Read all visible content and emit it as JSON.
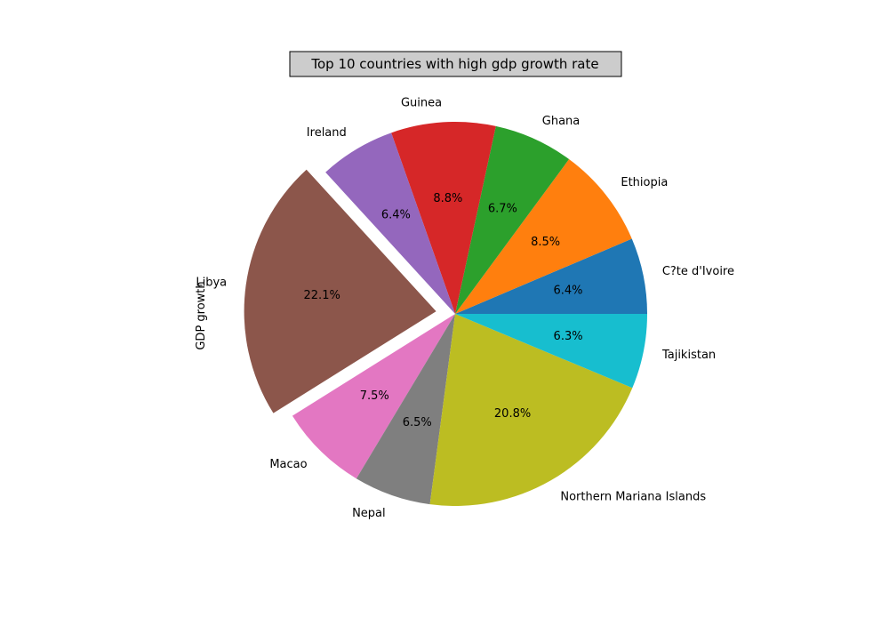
{
  "chart_data": {
    "type": "pie",
    "title": "Top 10 countries with high gdp growth rate",
    "ylabel": "GDP growth",
    "start_angle_deg": 0,
    "direction": "counterclockwise",
    "slices": [
      {
        "label": "C?te d'Ivoire",
        "pct_label": "6.4%",
        "value": 6.4,
        "color": "#1f77b4",
        "explode": 0
      },
      {
        "label": "Ethiopia",
        "pct_label": "8.5%",
        "value": 8.5,
        "color": "#ff7f0e",
        "explode": 0
      },
      {
        "label": "Ghana",
        "pct_label": "6.7%",
        "value": 6.7,
        "color": "#2ca02c",
        "explode": 0
      },
      {
        "label": "Guinea",
        "pct_label": "8.8%",
        "value": 8.8,
        "color": "#d62728",
        "explode": 0
      },
      {
        "label": "Ireland",
        "pct_label": "6.4%",
        "value": 6.4,
        "color": "#9467bd",
        "explode": 0
      },
      {
        "label": "Libya",
        "pct_label": "22.1%",
        "value": 22.1,
        "color": "#8c564b",
        "explode": 0.1
      },
      {
        "label": "Macao",
        "pct_label": "7.5%",
        "value": 7.5,
        "color": "#e377c2",
        "explode": 0
      },
      {
        "label": "Nepal",
        "pct_label": "6.5%",
        "value": 6.5,
        "color": "#7f7f7f",
        "explode": 0
      },
      {
        "label": "Northern Mariana Islands",
        "pct_label": "20.8%",
        "value": 20.8,
        "color": "#bcbd22",
        "explode": 0
      },
      {
        "label": "Tajikistan",
        "pct_label": "6.3%",
        "value": 6.3,
        "color": "#17becf",
        "explode": 0
      }
    ],
    "title_box_color": "#cccccc"
  }
}
